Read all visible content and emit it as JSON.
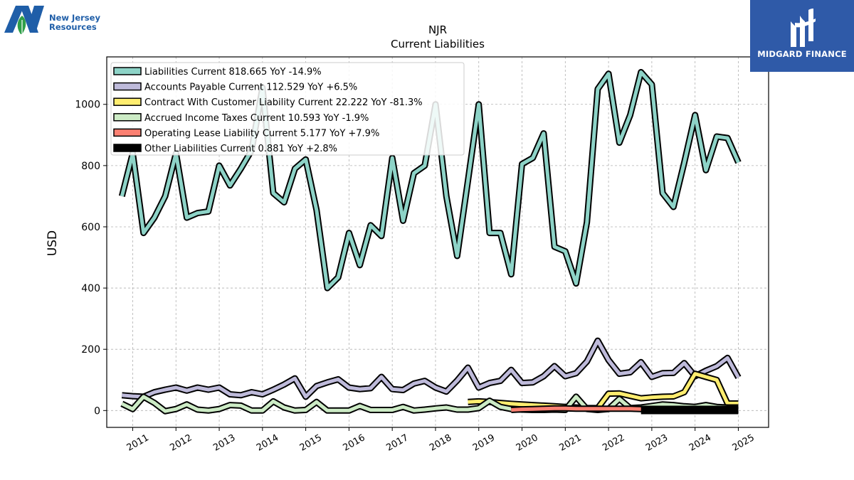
{
  "company": {
    "name_line1": "New Jersey",
    "name_line2": "Resources",
    "logo_letter": "N"
  },
  "brand": {
    "name": "MIDGARD FINANCE",
    "color": "#2f5aa8"
  },
  "chart_data": {
    "type": "line",
    "title": "NJR",
    "subtitle": "Current  Liabilities",
    "xlabel": "",
    "ylabel": "USD",
    "xlim": [
      2010.4,
      2025.7
    ],
    "ylim": [
      -55,
      1155
    ],
    "yticks": [
      0,
      200,
      400,
      600,
      800,
      1000
    ],
    "xticks": [
      2011,
      2012,
      2013,
      2014,
      2015,
      2016,
      2017,
      2018,
      2019,
      2020,
      2021,
      2022,
      2023,
      2024,
      2025
    ],
    "grid": true,
    "legend_position": "top-left",
    "series": [
      {
        "name": "Liabilities Current",
        "legend": "Liabilities Current  818.665 YoY -14.9%",
        "color": "#8dd3c7",
        "style": "line",
        "points": [
          [
            2010.75,
            700
          ],
          [
            2011.0,
            840
          ],
          [
            2011.25,
            580
          ],
          [
            2011.5,
            630
          ],
          [
            2011.75,
            700
          ],
          [
            2012.0,
            840
          ],
          [
            2012.25,
            630
          ],
          [
            2012.5,
            645
          ],
          [
            2012.75,
            650
          ],
          [
            2013.0,
            800
          ],
          [
            2013.25,
            735
          ],
          [
            2013.5,
            790
          ],
          [
            2013.75,
            850
          ],
          [
            2014.0,
            1055
          ],
          [
            2014.25,
            710
          ],
          [
            2014.5,
            680
          ],
          [
            2014.75,
            790
          ],
          [
            2015.0,
            820
          ],
          [
            2015.25,
            655
          ],
          [
            2015.5,
            400
          ],
          [
            2015.75,
            435
          ],
          [
            2016.0,
            580
          ],
          [
            2016.25,
            475
          ],
          [
            2016.5,
            605
          ],
          [
            2016.75,
            570
          ],
          [
            2017.0,
            825
          ],
          [
            2017.25,
            620
          ],
          [
            2017.5,
            775
          ],
          [
            2017.75,
            800
          ],
          [
            2018.0,
            1000
          ],
          [
            2018.25,
            700
          ],
          [
            2018.5,
            505
          ],
          [
            2018.75,
            750
          ],
          [
            2019.0,
            1000
          ],
          [
            2019.25,
            580
          ],
          [
            2019.5,
            580
          ],
          [
            2019.75,
            445
          ],
          [
            2020.0,
            805
          ],
          [
            2020.25,
            825
          ],
          [
            2020.5,
            905
          ],
          [
            2020.75,
            535
          ],
          [
            2021.0,
            520
          ],
          [
            2021.25,
            415
          ],
          [
            2021.5,
            615
          ],
          [
            2021.75,
            1050
          ],
          [
            2022.0,
            1100
          ],
          [
            2022.25,
            875
          ],
          [
            2022.5,
            965
          ],
          [
            2022.75,
            1105
          ],
          [
            2023.0,
            1065
          ],
          [
            2023.25,
            710
          ],
          [
            2023.5,
            665
          ],
          [
            2023.75,
            810
          ],
          [
            2024.0,
            965
          ],
          [
            2024.25,
            785
          ],
          [
            2024.5,
            895
          ],
          [
            2024.75,
            890
          ],
          [
            2025.0,
            810
          ]
        ]
      },
      {
        "name": "Accounts Payable Current",
        "legend": "Accounts Payable Current  112.529 YoY +6.5%",
        "color": "#bebada",
        "style": "line",
        "points": [
          [
            2010.75,
            50
          ],
          [
            2011.0,
            47
          ],
          [
            2011.25,
            45
          ],
          [
            2011.5,
            60
          ],
          [
            2011.75,
            68
          ],
          [
            2012.0,
            75
          ],
          [
            2012.25,
            65
          ],
          [
            2012.5,
            75
          ],
          [
            2012.75,
            68
          ],
          [
            2013.0,
            75
          ],
          [
            2013.25,
            53
          ],
          [
            2013.5,
            50
          ],
          [
            2013.75,
            60
          ],
          [
            2014.0,
            53
          ],
          [
            2014.25,
            68
          ],
          [
            2014.5,
            85
          ],
          [
            2014.75,
            105
          ],
          [
            2015.0,
            45
          ],
          [
            2015.25,
            80
          ],
          [
            2015.5,
            92
          ],
          [
            2015.75,
            102
          ],
          [
            2016.0,
            75
          ],
          [
            2016.25,
            70
          ],
          [
            2016.5,
            73
          ],
          [
            2016.75,
            110
          ],
          [
            2017.0,
            70
          ],
          [
            2017.25,
            67
          ],
          [
            2017.5,
            88
          ],
          [
            2017.75,
            97
          ],
          [
            2018.0,
            75
          ],
          [
            2018.25,
            62
          ],
          [
            2018.5,
            98
          ],
          [
            2018.75,
            140
          ],
          [
            2019.0,
            75
          ],
          [
            2019.25,
            90
          ],
          [
            2019.5,
            97
          ],
          [
            2019.75,
            133
          ],
          [
            2020.0,
            90
          ],
          [
            2020.25,
            92
          ],
          [
            2020.5,
            112
          ],
          [
            2020.75,
            145
          ],
          [
            2021.0,
            112
          ],
          [
            2021.25,
            122
          ],
          [
            2021.5,
            160
          ],
          [
            2021.75,
            228
          ],
          [
            2022.0,
            165
          ],
          [
            2022.25,
            120
          ],
          [
            2022.5,
            125
          ],
          [
            2022.75,
            158
          ],
          [
            2023.0,
            110
          ],
          [
            2023.25,
            122
          ],
          [
            2023.5,
            123
          ],
          [
            2023.75,
            155
          ],
          [
            2024.0,
            112
          ],
          [
            2024.25,
            130
          ],
          [
            2024.5,
            145
          ],
          [
            2024.75,
            172
          ],
          [
            2025.0,
            108
          ]
        ]
      },
      {
        "name": "Contract With Customer Liability Current",
        "legend": "Contract With Customer Liability Current  22.222 YoY -81.3%",
        "color": "#ffed6f",
        "style": "line",
        "points": [
          [
            2018.75,
            28
          ],
          [
            2019.0,
            30
          ],
          [
            2019.25,
            28
          ],
          [
            2019.5,
            25
          ],
          [
            2019.75,
            22
          ],
          [
            2020.0,
            20
          ],
          [
            2020.25,
            18
          ],
          [
            2020.5,
            16
          ],
          [
            2020.75,
            14
          ],
          [
            2021.0,
            12
          ],
          [
            2021.25,
            10
          ],
          [
            2021.5,
            8
          ],
          [
            2021.75,
            8
          ],
          [
            2022.0,
            55
          ],
          [
            2022.25,
            56
          ],
          [
            2022.5,
            48
          ],
          [
            2022.75,
            40
          ],
          [
            2023.0,
            43
          ],
          [
            2023.25,
            45
          ],
          [
            2023.5,
            46
          ],
          [
            2023.75,
            60
          ],
          [
            2024.0,
            120
          ],
          [
            2024.25,
            110
          ],
          [
            2024.5,
            100
          ],
          [
            2024.75,
            23
          ],
          [
            2025.0,
            23
          ]
        ]
      },
      {
        "name": "Accrued Income Taxes Current",
        "legend": "Accrued Income Taxes Current  10.593 YoY -1.9%",
        "color": "#ccebc5",
        "style": "line",
        "points": [
          [
            2010.75,
            22
          ],
          [
            2011.0,
            5
          ],
          [
            2011.25,
            45
          ],
          [
            2011.5,
            25
          ],
          [
            2011.75,
            -2
          ],
          [
            2012.0,
            5
          ],
          [
            2012.25,
            20
          ],
          [
            2012.5,
            3
          ],
          [
            2012.75,
            0
          ],
          [
            2013.0,
            5
          ],
          [
            2013.25,
            18
          ],
          [
            2013.5,
            16
          ],
          [
            2013.75,
            0
          ],
          [
            2014.0,
            0
          ],
          [
            2014.25,
            30
          ],
          [
            2014.5,
            10
          ],
          [
            2014.75,
            0
          ],
          [
            2015.0,
            2
          ],
          [
            2015.25,
            28
          ],
          [
            2015.5,
            0
          ],
          [
            2015.75,
            0
          ],
          [
            2016.0,
            0
          ],
          [
            2016.25,
            15
          ],
          [
            2016.5,
            2
          ],
          [
            2016.75,
            2
          ],
          [
            2017.0,
            2
          ],
          [
            2017.25,
            12
          ],
          [
            2017.5,
            0
          ],
          [
            2017.75,
            3
          ],
          [
            2018.0,
            7
          ],
          [
            2018.25,
            10
          ],
          [
            2018.5,
            3
          ],
          [
            2018.75,
            3
          ],
          [
            2019.0,
            8
          ],
          [
            2019.25,
            32
          ],
          [
            2019.5,
            12
          ],
          [
            2019.75,
            5
          ],
          [
            2020.0,
            3
          ],
          [
            2020.25,
            2
          ],
          [
            2020.5,
            2
          ],
          [
            2020.75,
            3
          ],
          [
            2021.0,
            2
          ],
          [
            2021.25,
            45
          ],
          [
            2021.5,
            5
          ],
          [
            2021.75,
            2
          ],
          [
            2022.0,
            5
          ],
          [
            2022.25,
            38
          ],
          [
            2022.5,
            8
          ],
          [
            2022.75,
            10
          ],
          [
            2023.0,
            15
          ],
          [
            2023.25,
            20
          ],
          [
            2023.5,
            18
          ],
          [
            2023.75,
            14
          ],
          [
            2024.0,
            12
          ],
          [
            2024.25,
            18
          ],
          [
            2024.5,
            12
          ],
          [
            2024.75,
            10
          ],
          [
            2025.0,
            10
          ]
        ]
      },
      {
        "name": "Operating Lease Liability Current",
        "legend": "Operating Lease Liability Current  5.177 YoY +7.9%",
        "color": "#fb8072",
        "style": "line",
        "points": [
          [
            2019.75,
            2
          ],
          [
            2020.0,
            4
          ],
          [
            2020.25,
            5
          ],
          [
            2020.5,
            6
          ],
          [
            2020.75,
            7
          ],
          [
            2021.0,
            7
          ],
          [
            2021.25,
            6
          ],
          [
            2021.5,
            6
          ],
          [
            2021.75,
            6
          ],
          [
            2022.0,
            6
          ],
          [
            2022.25,
            6
          ],
          [
            2022.5,
            6
          ],
          [
            2022.75,
            5
          ],
          [
            2023.0,
            5
          ],
          [
            2023.25,
            5
          ],
          [
            2023.5,
            5
          ],
          [
            2023.75,
            5
          ],
          [
            2024.0,
            5
          ],
          [
            2024.25,
            5
          ],
          [
            2024.5,
            5
          ],
          [
            2024.75,
            5
          ],
          [
            2025.0,
            5
          ]
        ]
      },
      {
        "name": "Other Liabilities Current",
        "legend": "Other Liabilities Current  0.881 YoY +2.8%",
        "color": "#000000",
        "style": "band",
        "points": [
          [
            2022.75,
            2
          ],
          [
            2023.0,
            2
          ],
          [
            2023.25,
            2
          ],
          [
            2023.5,
            2
          ],
          [
            2023.75,
            2
          ],
          [
            2024.0,
            2
          ],
          [
            2024.25,
            2
          ],
          [
            2024.5,
            2
          ],
          [
            2024.75,
            2
          ],
          [
            2025.0,
            2
          ]
        ]
      }
    ]
  }
}
